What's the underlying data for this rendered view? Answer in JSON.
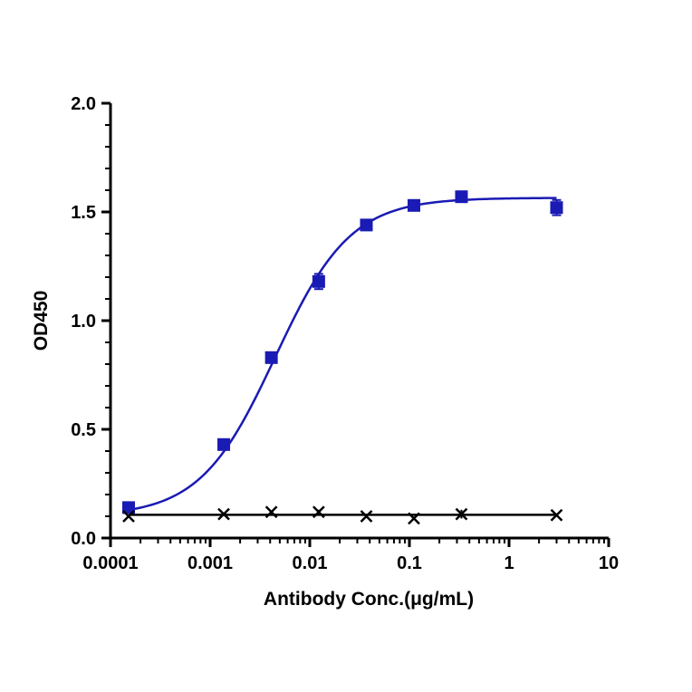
{
  "chart_data": {
    "type": "scatter",
    "xlabel": "Antibody Conc.(μg/mL)",
    "ylabel": "OD450",
    "xscale": "log",
    "xlim": [
      0.0001,
      10
    ],
    "ylim": [
      0,
      2.0
    ],
    "x_ticks": [
      0.0001,
      0.001,
      0.01,
      0.1,
      1,
      10
    ],
    "x_tick_labels": [
      "0.0001",
      "0.001",
      "0.01",
      "0.1",
      "1",
      "10"
    ],
    "y_ticks": [
      0,
      0.5,
      1.0,
      1.5,
      2.0
    ],
    "y_tick_labels": [
      "0.0",
      "0.5",
      "1.0",
      "1.5",
      "2.0"
    ],
    "grid": false,
    "series": [
      {
        "color": "#1a1ab4",
        "marker": "square",
        "fit": "sigmoid",
        "x": [
          0.000152,
          0.00137,
          0.00412,
          0.0123,
          0.037,
          0.111,
          0.333,
          3.0
        ],
        "y": [
          0.14,
          0.43,
          0.83,
          1.18,
          1.44,
          1.53,
          1.57,
          1.52
        ],
        "err": [
          0.01,
          0.015,
          0.015,
          0.035,
          0.015,
          0.01,
          0.015,
          0.035
        ]
      },
      {
        "color": "#000000",
        "marker": "cross",
        "fit": "flat",
        "x": [
          0.000152,
          0.00137,
          0.00412,
          0.0123,
          0.037,
          0.111,
          0.333,
          3.0
        ],
        "y": [
          0.1,
          0.11,
          0.12,
          0.12,
          0.1,
          0.09,
          0.11,
          0.105
        ],
        "err": [
          0.005,
          0.005,
          0.005,
          0.01,
          0.005,
          0.005,
          0.02,
          0.005
        ]
      }
    ]
  }
}
